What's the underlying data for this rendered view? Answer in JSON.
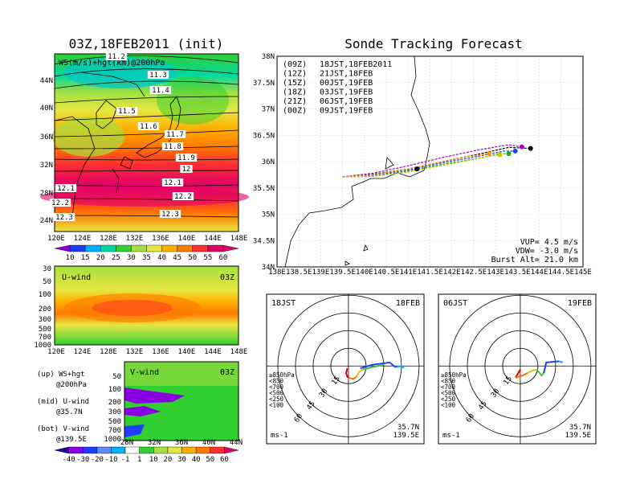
{
  "left_title": "03Z,18FEB2011 (init)",
  "right_title": "Sonde Tracking Forecast",
  "colors": {
    "c1": "#8a00e0",
    "c2": "#1f3cff",
    "c3": "#00b0ff",
    "c4": "#00d8a0",
    "c5": "#30d030",
    "c6": "#a6e040",
    "c7": "#e6e640",
    "c8": "#ffb000",
    "c9": "#ff7a00",
    "c10": "#ff3030",
    "c11": "#e0006a",
    "line": "#000000"
  },
  "map": {
    "label": "WS(m/s)+hgt(km)@200hPa",
    "lat_labels": [
      "44N",
      "40N",
      "36N",
      "32N",
      "28N",
      "24N"
    ],
    "lon_labels": [
      "120E",
      "124E",
      "128E",
      "132E",
      "136E",
      "140E",
      "144E",
      "148E"
    ],
    "contour_labels": [
      "11.2",
      "11.3",
      "11.4",
      "11.5",
      "11.6",
      "11.7",
      "11.8",
      "11.9",
      "12",
      "12.1",
      "12.2",
      "12.3",
      "12.1",
      "12.2",
      "12.3"
    ],
    "colorbar": [
      "10",
      "15",
      "20",
      "25",
      "30",
      "35",
      "40",
      "45",
      "50",
      "55",
      "60"
    ]
  },
  "uwind": {
    "label": "U-wind",
    "time": "03Z",
    "p_labels": [
      "30",
      "50",
      "100",
      "200",
      "300",
      "500",
      "700",
      "1000"
    ],
    "lon_labels": [
      "120E",
      "124E",
      "128E",
      "132E",
      "136E",
      "140E",
      "144E",
      "148E"
    ]
  },
  "vwind": {
    "label": "V-wind",
    "time": "03Z",
    "p_labels": [
      "50",
      "100",
      "200",
      "300",
      "500",
      "700",
      "1000"
    ],
    "lat_labels": [
      "28N",
      "32N",
      "36N",
      "40N",
      "44N"
    ],
    "colorbar": [
      "-40",
      "-30",
      "-20",
      "-10",
      "-1",
      "1",
      "10",
      "20",
      "30",
      "40",
      "50",
      "60"
    ]
  },
  "legend_notes": [
    {
      "a": "(up) WS+hgt",
      "b": "@200hPa"
    },
    {
      "a": "(mid) U-wind",
      "b": "@35.7N"
    },
    {
      "a": "(bot) V-wind",
      "b": "@139.5E"
    }
  ],
  "chart_data": [
    {
      "type": "line",
      "title": "Sonde Tracking Forecast",
      "xlim": [
        138,
        145
      ],
      "ylim": [
        34,
        38
      ],
      "x_ticks": [
        "138E",
        "138.5E",
        "139E",
        "139.5E",
        "140E",
        "140.5E",
        "141E",
        "141.5E",
        "142E",
        "142.5E",
        "143E",
        "143.5E",
        "144E",
        "144.5E",
        "145E"
      ],
      "y_ticks": [
        "38N",
        "37.5N",
        "37N",
        "36.5N",
        "36N",
        "35.5N",
        "35N",
        "34.5N",
        "34N"
      ],
      "legend": [
        {
          "code": "(09Z)",
          "label": "18JST,18FEB2011",
          "color": "#000000"
        },
        {
          "code": "(12Z)",
          "label": "21JST,18FEB",
          "color": "#b000c8"
        },
        {
          "code": "(15Z)",
          "label": "00JST,19FEB",
          "color": "#1f3cff"
        },
        {
          "code": "(18Z)",
          "label": "03JST,19FEB",
          "color": "#10b010"
        },
        {
          "code": "(21Z)",
          "label": "06JST,19FEB",
          "color": "#c8c800"
        },
        {
          "code": "(00Z)",
          "label": "09JST,19FEB",
          "color": "#ff9000"
        }
      ],
      "series": [
        {
          "name": "(09Z)",
          "color": "#000000",
          "end": [
            143.8,
            36.25
          ],
          "x": [
            139.5,
            140.2,
            141.0,
            141.8,
            142.6,
            143.3,
            143.8
          ],
          "y": [
            35.71,
            35.76,
            35.86,
            36.0,
            36.14,
            36.27,
            36.25
          ]
        },
        {
          "name": "(12Z)",
          "color": "#b000c8",
          "end": [
            143.6,
            36.28
          ],
          "x": [
            139.5,
            140.2,
            141.0,
            141.8,
            142.6,
            143.3,
            143.6
          ],
          "y": [
            35.71,
            35.78,
            35.92,
            36.08,
            36.22,
            36.32,
            36.28
          ]
        },
        {
          "name": "(15Z)",
          "color": "#1f3cff",
          "end": [
            143.45,
            36.2
          ],
          "x": [
            139.5,
            140.2,
            141.0,
            141.8,
            142.6,
            143.2,
            143.45
          ],
          "y": [
            35.71,
            35.74,
            35.84,
            35.98,
            36.1,
            36.2,
            36.2
          ]
        },
        {
          "name": "(18Z)",
          "color": "#10b010",
          "end": [
            143.3,
            36.15
          ],
          "x": [
            139.5,
            140.2,
            141.0,
            141.8,
            142.6,
            143.1,
            143.3
          ],
          "y": [
            35.71,
            35.72,
            35.82,
            35.95,
            36.06,
            36.15,
            36.15
          ]
        },
        {
          "name": "(21Z)",
          "color": "#c8c800",
          "end": [
            143.1,
            36.13
          ],
          "x": [
            139.5,
            140.2,
            141.0,
            141.8,
            142.5,
            143.0,
            143.1
          ],
          "y": [
            35.71,
            35.72,
            35.8,
            35.93,
            36.04,
            36.12,
            36.13
          ]
        },
        {
          "name": "(00Z)",
          "color": "#ff9000",
          "end": [
            142.85,
            36.15
          ],
          "x": [
            139.5,
            140.2,
            141.0,
            141.8,
            142.4,
            142.85
          ],
          "y": [
            35.71,
            35.75,
            35.86,
            36.0,
            36.1,
            36.15
          ]
        }
      ],
      "stats": [
        "VUP= 4.5 m/s",
        "VDW= -3.0 m/s",
        "Burst Alt= 21.0 km"
      ]
    },
    {
      "type": "line",
      "left": "18JST",
      "right": "18FEB",
      "rings": [
        "15",
        "30",
        "45",
        "60"
      ],
      "pressure_legend": [
        "≥850hPa",
        "<850",
        "<700",
        "<500",
        "<250",
        "<100"
      ],
      "unit": "ms-1",
      "loc": [
        "35.7N",
        "139.5E"
      ],
      "series": [
        {
          "name": "≥850hPa",
          "color": "#e00000",
          "x": [
            -1,
            -2,
            -1,
            0
          ],
          "y": [
            -2,
            -6,
            -9,
            -10
          ]
        },
        {
          "name": "<850",
          "color": "#ff7000",
          "x": [
            0,
            4,
            7
          ],
          "y": [
            -10,
            -11,
            -9
          ]
        },
        {
          "name": "<700",
          "color": "#e8c000",
          "x": [
            7,
            9,
            12
          ],
          "y": [
            -9,
            -5,
            -3
          ]
        },
        {
          "name": "<500",
          "color": "#40c040",
          "x": [
            12,
            20,
            30
          ],
          "y": [
            -3,
            -1,
            1
          ]
        },
        {
          "name": "<250",
          "color": "#1f3cff",
          "x": [
            10,
            20,
            35,
            40
          ],
          "y": [
            -2,
            1,
            3,
            -1
          ]
        },
        {
          "name": "<100",
          "color": "#00b0ff",
          "x": [
            40,
            45,
            47
          ],
          "y": [
            -1,
            0,
            -2
          ]
        }
      ]
    },
    {
      "type": "line",
      "left": "06JST",
      "right": "19FEB",
      "rings": [
        "15",
        "30",
        "45",
        "60"
      ],
      "pressure_legend": [
        "≥850hPa",
        "<850",
        "<700",
        "<500",
        "<250",
        "<100"
      ],
      "unit": "ms-1",
      "loc": [
        "35.7N",
        "139.5E"
      ],
      "series": [
        {
          "name": "≥850hPa",
          "color": "#e00000",
          "x": [
            0,
            -3,
            -4
          ],
          "y": [
            -3,
            -8,
            -10
          ]
        },
        {
          "name": "<850",
          "color": "#ff7000",
          "x": [
            -4,
            2,
            6
          ],
          "y": [
            -10,
            -8,
            -6
          ]
        },
        {
          "name": "<700",
          "color": "#e8c000",
          "x": [
            6,
            10,
            14
          ],
          "y": [
            -6,
            -4,
            -3
          ]
        },
        {
          "name": "<500",
          "color": "#40c040",
          "x": [
            14,
            18,
            20
          ],
          "y": [
            -3,
            -8,
            -6
          ]
        },
        {
          "name": "<250",
          "color": "#1f3cff",
          "x": [
            20,
            22,
            33
          ],
          "y": [
            -6,
            3,
            4
          ]
        },
        {
          "name": "<100",
          "color": "#00b0ff",
          "x": [
            33,
            36
          ],
          "y": [
            4,
            3
          ]
        }
      ]
    }
  ]
}
